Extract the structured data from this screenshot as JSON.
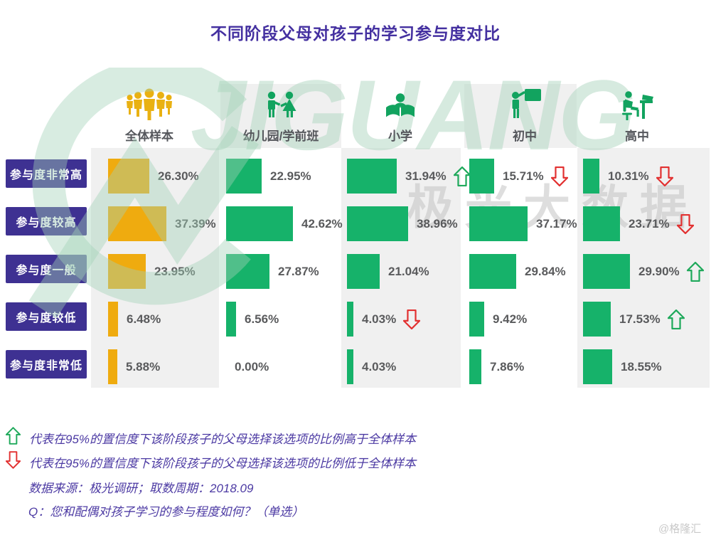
{
  "title": "不同阶段父母对孩子的学习参与度对比",
  "watermark": {
    "brand": "JIGUANG",
    "brand_cn": "极光大数据"
  },
  "credit": "@格隆汇",
  "colors": {
    "bar_yellow": "#EFAB0F",
    "bar_green": "#16B26A",
    "row_label_purple": "#3E3192",
    "title_purple": "#4430A0",
    "arrow_up_green": "#1FA95B",
    "arrow_down_red": "#E23131",
    "panel_gray": "#F0F0F0"
  },
  "columns": [
    {
      "label": "全体样本",
      "icon": "people-group-icon"
    },
    {
      "label": "幼儿园/学前班",
      "icon": "kindergarten-kids-icon"
    },
    {
      "label": "小学",
      "icon": "child-reading-icon"
    },
    {
      "label": "初中",
      "icon": "teacher-blackboard-icon"
    },
    {
      "label": "高中",
      "icon": "student-desk-icon"
    }
  ],
  "rows": [
    "参与度非常高",
    "参与度较高",
    "参与度一般",
    "参与度较低",
    "参与度非常低"
  ],
  "chart_data": {
    "type": "bar",
    "orientation": "horizontal",
    "unit": "%",
    "categories": [
      "参与度非常高",
      "参与度较高",
      "参与度一般",
      "参与度较低",
      "参与度非常低"
    ],
    "series": [
      {
        "name": "全体样本",
        "color": "#EFAB0F",
        "values": [
          26.3,
          37.39,
          23.95,
          6.48,
          5.88
        ],
        "flags": [
          null,
          null,
          null,
          null,
          null
        ]
      },
      {
        "name": "幼儿园/学前班",
        "color": "#16B26A",
        "values": [
          22.95,
          42.62,
          27.87,
          6.56,
          0.0
        ],
        "flags": [
          null,
          null,
          null,
          null,
          null
        ]
      },
      {
        "name": "小学",
        "color": "#16B26A",
        "values": [
          31.94,
          38.96,
          21.04,
          4.03,
          4.03
        ],
        "flags": [
          "up",
          null,
          null,
          "down",
          null
        ]
      },
      {
        "name": "初中",
        "color": "#16B26A",
        "values": [
          15.71,
          37.17,
          29.84,
          9.42,
          7.86
        ],
        "flags": [
          "down",
          null,
          null,
          null,
          null
        ]
      },
      {
        "name": "高中",
        "color": "#16B26A",
        "values": [
          10.31,
          23.71,
          29.9,
          17.53,
          18.55
        ],
        "flags": [
          "down",
          "down",
          "up",
          "up",
          null
        ]
      }
    ]
  },
  "legend": [
    {
      "icon": "significance-up-icon",
      "text": "代表在95%的置信度下该阶段孩子的父母选择该选项的比例高于全体样本"
    },
    {
      "icon": "significance-down-icon",
      "text": "代表在95%的置信度下该阶段孩子的父母选择该选项的比例低于全体样本"
    }
  ],
  "source_line": "数据来源：极光调研；取数周期：2018.09",
  "question_line": "Q：您和配偶对孩子学习的参与程度如何？（单选）"
}
